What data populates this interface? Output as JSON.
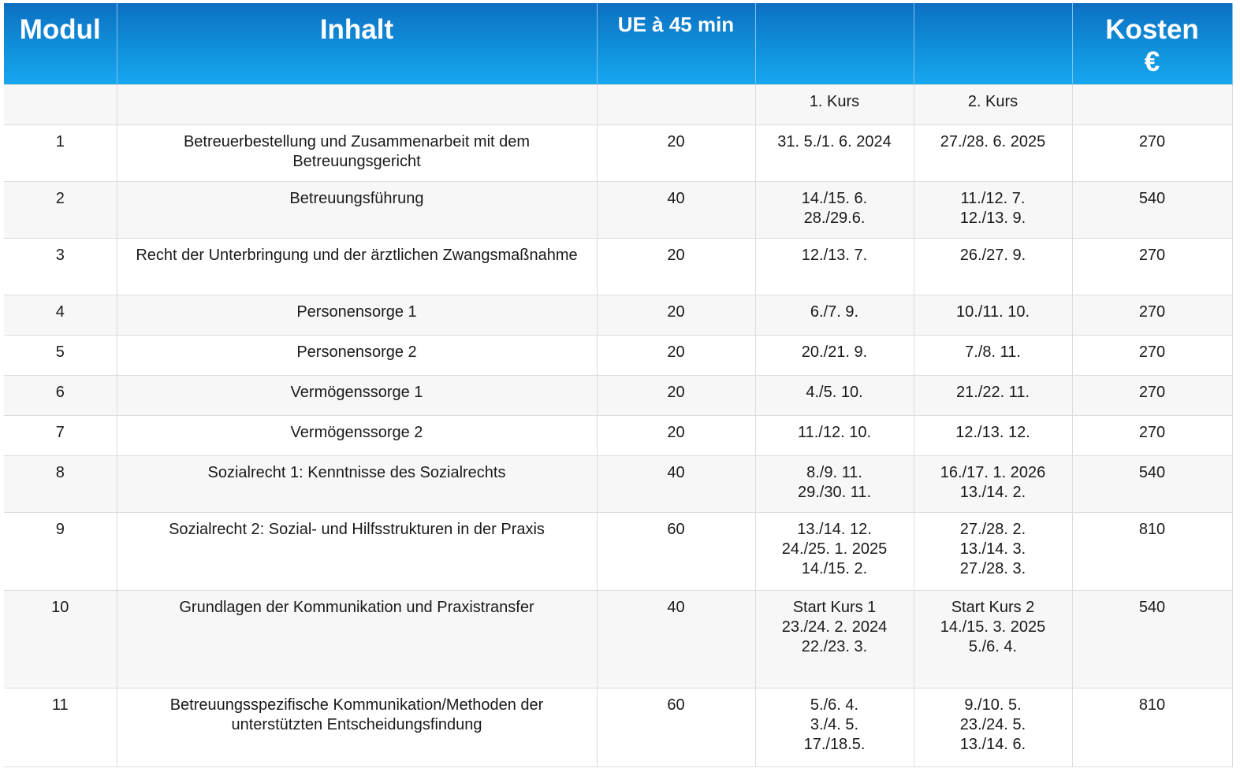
{
  "header": {
    "modul": "Modul",
    "inhalt": "Inhalt",
    "ue": "UE à 45 min",
    "kurs1": "",
    "kurs2": "",
    "kosten": "Kosten",
    "kosten_unit": "€"
  },
  "subheader": {
    "modul": "",
    "inhalt": "",
    "ue": "",
    "kurs1": "1. Kurs",
    "kurs2": "2. Kurs",
    "kosten": ""
  },
  "rows": [
    {
      "modul": "1",
      "inhalt": [
        "Betreuerbestellung und Zusammenarbeit mit dem",
        "Betreuungsgericht"
      ],
      "ue": "20",
      "kurs1": [
        "31. 5./1. 6. 2024"
      ],
      "kurs2": [
        "27./28. 6. 2025"
      ],
      "kosten": "270"
    },
    {
      "modul": "2",
      "inhalt": [
        "Betreuungsführung"
      ],
      "ue": "40",
      "kurs1": [
        "14./15. 6.",
        "28./29.6."
      ],
      "kurs2": [
        "11./12. 7.",
        "12./13. 9."
      ],
      "kosten": "540"
    },
    {
      "modul": "3",
      "inhalt": [
        "Recht der Unterbringung und der ärztlichen Zwangsmaßnahme"
      ],
      "ue": "20",
      "kurs1": [
        "12./13. 7."
      ],
      "kurs2": [
        "26./27. 9."
      ],
      "kosten": "270"
    },
    {
      "modul": "4",
      "inhalt": [
        "Personensorge 1"
      ],
      "ue": "20",
      "kurs1": [
        "6./7. 9."
      ],
      "kurs2": [
        "10./11. 10."
      ],
      "kosten": "270"
    },
    {
      "modul": "5",
      "inhalt": [
        "Personensorge 2"
      ],
      "ue": "20",
      "kurs1": [
        "20./21. 9."
      ],
      "kurs2": [
        "7./8. 11."
      ],
      "kosten": "270"
    },
    {
      "modul": "6",
      "inhalt": [
        "Vermögenssorge 1"
      ],
      "ue": "20",
      "kurs1": [
        "4./5. 10."
      ],
      "kurs2": [
        "21./22. 11."
      ],
      "kosten": "270"
    },
    {
      "modul": "7",
      "inhalt": [
        "Vermögenssorge 2"
      ],
      "ue": "20",
      "kurs1": [
        "11./12. 10."
      ],
      "kurs2": [
        "12./13. 12."
      ],
      "kosten": "270"
    },
    {
      "modul": "8",
      "inhalt": [
        "Sozialrecht 1: Kenntnisse des Sozialrechts"
      ],
      "ue": "40",
      "kurs1": [
        "8./9. 11.",
        "29./30. 11."
      ],
      "kurs2": [
        "16./17. 1. 2026",
        "13./14. 2."
      ],
      "kosten": "540"
    },
    {
      "modul": "9",
      "inhalt": [
        "Sozialrecht 2: Sozial- und Hilfsstrukturen in der Praxis"
      ],
      "ue": "60",
      "kurs1": [
        "13./14. 12.",
        "24./25. 1. 2025",
        "14./15. 2."
      ],
      "kurs2": [
        "27./28. 2.",
        "13./14. 3.",
        "27./28. 3."
      ],
      "kosten": "810"
    },
    {
      "modul": "10",
      "inhalt": [
        "Grundlagen der Kommunikation und Praxistransfer"
      ],
      "ue": "40",
      "kurs1": [
        "Start Kurs 1",
        "23./24. 2. 2024",
        "22./23. 3."
      ],
      "kurs2": [
        "Start Kurs 2",
        "14./15. 3. 2025",
        "5./6. 4."
      ],
      "kosten": "540"
    },
    {
      "modul": "11",
      "inhalt": [
        "Betreuungsspezifische Kommunikation/Methoden der",
        "unterstützten Entscheidungsfindung"
      ],
      "ue": "60",
      "kurs1": [
        "5./6. 4.",
        "3./4. 5.",
        "17./18.5."
      ],
      "kurs2": [
        "9./10. 5.",
        "23./24. 5.",
        "13./14. 6."
      ],
      "kosten": "810"
    }
  ]
}
